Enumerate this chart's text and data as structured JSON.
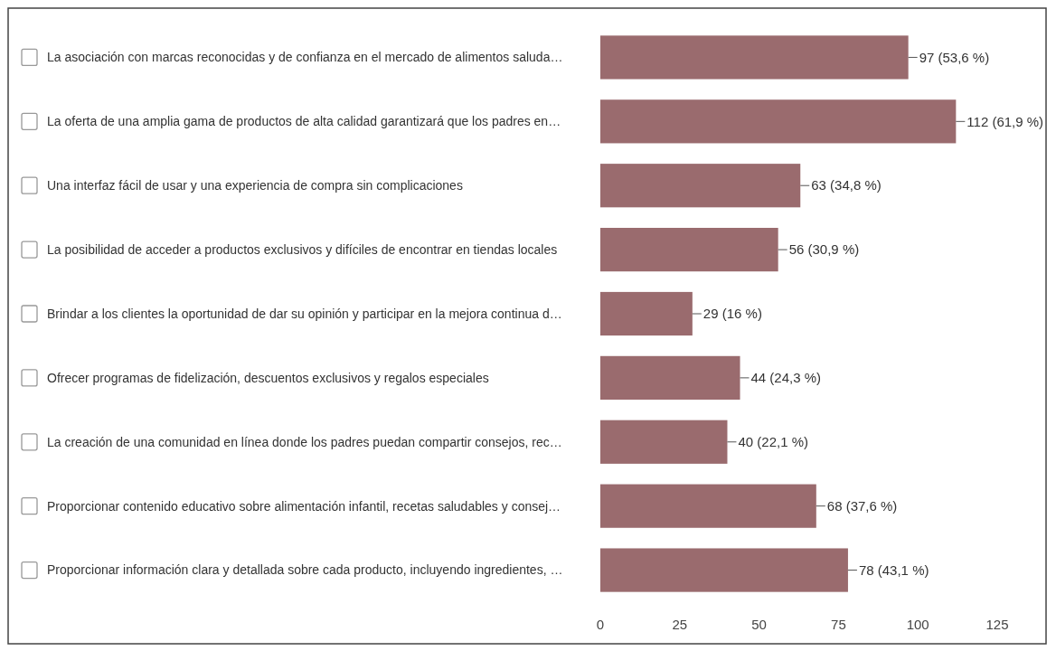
{
  "chart_data": {
    "type": "bar",
    "orientation": "horizontal",
    "categories": [
      "La asociación con marcas reconocidas y de confianza en el mercado de alimentos saluda…",
      "La oferta de una amplia gama de productos de alta calidad garantizará que los padres en…",
      "Una interfaz fácil de usar y una experiencia de compra sin complicaciones",
      "La posibilidad de acceder a productos exclusivos y difíciles de encontrar en tiendas locales",
      "Brindar a los clientes la oportunidad de dar su opinión y participar en la mejora continua d…",
      "Ofrecer programas de fidelización, descuentos exclusivos y regalos especiales",
      "La creación de una comunidad en línea donde los padres puedan compartir consejos, rec…",
      "Proporcionar contenido educativo sobre alimentación infantil, recetas saludables y consej…",
      "Proporcionar información clara y detallada sobre cada producto, incluyendo ingredientes, …"
    ],
    "values": [
      97,
      112,
      63,
      56,
      29,
      44,
      40,
      68,
      78
    ],
    "value_labels": [
      "97 (53,6 %)",
      "112 (61,9 %)",
      "63 (34,8 %)",
      "56 (30,9 %)",
      "29 (16 %)",
      "44 (24,3 %)",
      "40 (22,1 %)",
      "68 (37,6 %)",
      "78 (43,1 %)"
    ],
    "color": "#9a6b6e",
    "xlim": [
      0,
      125
    ],
    "xticks": [
      0,
      25,
      50,
      75,
      100,
      125
    ],
    "grid": false
  }
}
